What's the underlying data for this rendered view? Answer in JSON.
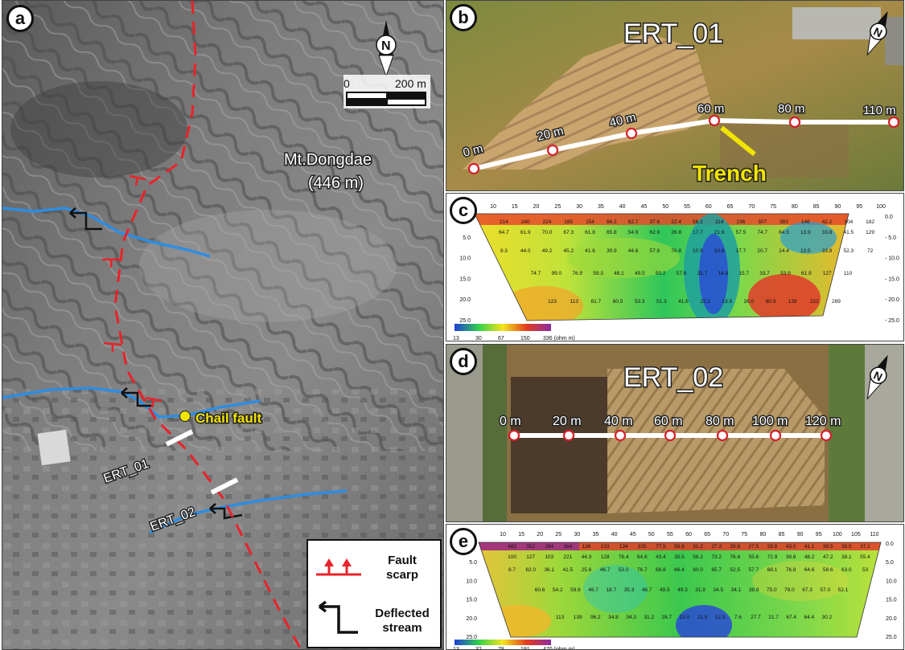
{
  "panels": {
    "a": "a",
    "b": "b",
    "c": "c",
    "d": "d",
    "e": "e"
  },
  "map_a": {
    "north": "N",
    "scale_start": "0",
    "scale_end": "200 m",
    "peak_name": "Mt.Dongdae",
    "peak_elev": "(446 m)",
    "fault_name": "Chail fault",
    "ert01": "ERT_01",
    "ert02": "ERT_02",
    "legend": {
      "fault_line1": "Fault",
      "fault_line2": "scarp",
      "stream_line1": "Deflected",
      "stream_line2": "stream"
    },
    "colors": {
      "fault": "#e8232a",
      "stream": "#2f8de0",
      "deflect": "#111111",
      "fault_point": "#f1e400"
    }
  },
  "photo_b": {
    "title": "ERT_01",
    "north": "N",
    "trench": "Trench",
    "markers": [
      "0 m",
      "20 m",
      "40 m",
      "60 m",
      "80 m",
      "110 m"
    ]
  },
  "photo_d": {
    "title": "ERT_02",
    "north": "N",
    "markers": [
      "0 m",
      "20 m",
      "40 m",
      "60 m",
      "80 m",
      "100 m",
      "120 m"
    ]
  },
  "section_c": {
    "x_ticks": [
      "10",
      "15",
      "20",
      "25",
      "30",
      "35",
      "40",
      "45",
      "50",
      "55",
      "60",
      "65",
      "70",
      "75",
      "80",
      "85",
      "90",
      "95",
      "100"
    ],
    "y_ticks_left": [
      "0",
      "5.0",
      "10.0",
      "15.0",
      "20.0",
      "25.0"
    ],
    "y_ticks_right": [
      "0.0",
      "- 5.0",
      "- 10.0",
      "- 15.0",
      "- 20.0",
      "- 25.0"
    ],
    "rows": [
      [
        "214",
        "240",
        "224",
        "185",
        "154",
        "66.2",
        "82.7",
        "37.6",
        "22.4",
        "56.2",
        "114",
        "236",
        "307",
        "383",
        "146",
        "42.2",
        "104",
        "182"
      ],
      [
        "64.7",
        "61.9",
        "70.0",
        "67.3",
        "61.8",
        "65.8",
        "54.9",
        "62.9",
        "26.8",
        "17.7",
        "21.9",
        "57.5",
        "74.7",
        "64.5",
        "13.9",
        "33.8",
        "41.5",
        "129"
      ],
      [
        "9.3",
        "44.0",
        "49.2",
        "45.2",
        "41.6",
        "39.9",
        "44.6",
        "57.8",
        "76.8",
        "10.9",
        "10.8",
        "17.7",
        "20.7",
        "14.4",
        "13.5",
        "33.9",
        "52.3",
        "72"
      ],
      [
        "74.7",
        "99.0",
        "76.9",
        "59.3",
        "48.1",
        "49.5",
        "50.2",
        "57.6",
        "31.7",
        "14.9",
        "15.7",
        "33.7",
        "53.9",
        "61.9",
        "127",
        "110"
      ],
      [
        "123",
        "113",
        "81.7",
        "60.5",
        "53.3",
        "51.3",
        "41.6",
        "22.1",
        "13.9",
        "26.0",
        "80.9",
        "139",
        "222",
        "289"
      ]
    ],
    "colorbar_ticks": [
      "13",
      "30",
      "67",
      "150",
      "336 (ohm m)"
    ]
  },
  "section_e": {
    "x_ticks": [
      "10",
      "15",
      "20",
      "25",
      "30",
      "35",
      "40",
      "45",
      "50",
      "55",
      "60",
      "65",
      "70",
      "75",
      "80",
      "85",
      "90",
      "95",
      "100",
      "105",
      "110"
    ],
    "y_ticks_left": [
      "0.0",
      "5.0",
      "10.0",
      "15.0",
      "20.0",
      "25.0"
    ],
    "y_ticks_right": [
      "0.0",
      "5.0",
      "10.0",
      "15.0",
      "20.0",
      "25.0"
    ],
    "rows": [
      [
        "482",
        "352",
        "294",
        "164",
        "136",
        "133",
        "134",
        "105",
        "77.5",
        "56.9",
        "31.2",
        "27.3",
        "26.8",
        "27.5",
        "29.8",
        "43.0",
        "41.1",
        "39.5",
        "35.5",
        "37.2"
      ],
      [
        "100",
        "127",
        "103",
        "221",
        "44.3",
        "128",
        "78.4",
        "64.6",
        "43.4",
        "35.5",
        "56.2",
        "73.2",
        "76.8",
        "55.6",
        "72.9",
        "39.8",
        "48.2",
        "47.2",
        "38.1",
        "55.4"
      ],
      [
        "8.7",
        "62.0",
        "36.1",
        "41.5",
        "25.6",
        "46.7",
        "53.0",
        "76.7",
        "66.8",
        "66.4",
        "60.0",
        "65.7",
        "52.5",
        "57.7",
        "68.1",
        "76.8",
        "64.6",
        "58.6",
        "63.0",
        "53"
      ],
      [
        "60.6",
        "54.2",
        "59.6",
        "46.7",
        "18.7",
        "35.3",
        "46.7",
        "49.5",
        "49.3",
        "31.9",
        "34.5",
        "34.1",
        "38.9",
        "75.0",
        "79.0",
        "67.3",
        "57.0",
        "52.1"
      ],
      [
        "113",
        "139",
        "96.2",
        "34.8",
        "34.3",
        "31.2",
        "28.7",
        "22.0",
        "11.9",
        "12.3",
        "7.6",
        "27.7",
        "21.7",
        "67.4",
        "64.4",
        "30.2"
      ]
    ],
    "colorbar_ticks": [
      "13",
      "32",
      "78",
      "191",
      "470 (ohm m)"
    ]
  }
}
